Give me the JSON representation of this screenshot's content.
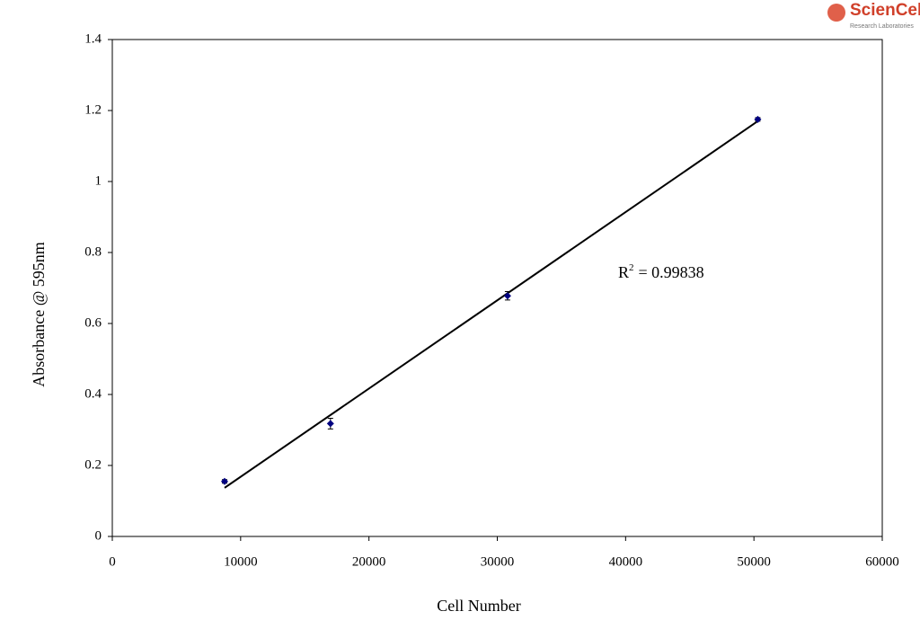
{
  "chart_data": {
    "type": "scatter",
    "x_label": "Cell Number",
    "y_label": "Absorbance @ 595nm",
    "x": [
      8750,
      17000,
      30800,
      50300
    ],
    "values": [
      0.155,
      0.318,
      0.678,
      1.175
    ],
    "errors": [
      0.005,
      0.015,
      0.012,
      0.005
    ],
    "color": "#000080",
    "trendline": {
      "x": [
        8750,
        50300
      ],
      "y": [
        0.137,
        1.17
      ]
    },
    "annotation": {
      "prefix": "R",
      "sup": "2",
      "suffix": "= 0.99838"
    },
    "xlim": [
      0,
      60000
    ],
    "xticks": [
      0,
      10000,
      20000,
      30000,
      40000,
      50000,
      60000
    ],
    "ylim": [
      0,
      1.4
    ],
    "yticks": [
      0,
      0.2,
      0.4,
      0.6,
      0.8,
      1,
      1.2,
      1.4
    ],
    "grid": false
  },
  "logo": {
    "name": "ScienCell",
    "subtitle": "Research Laboratories"
  }
}
